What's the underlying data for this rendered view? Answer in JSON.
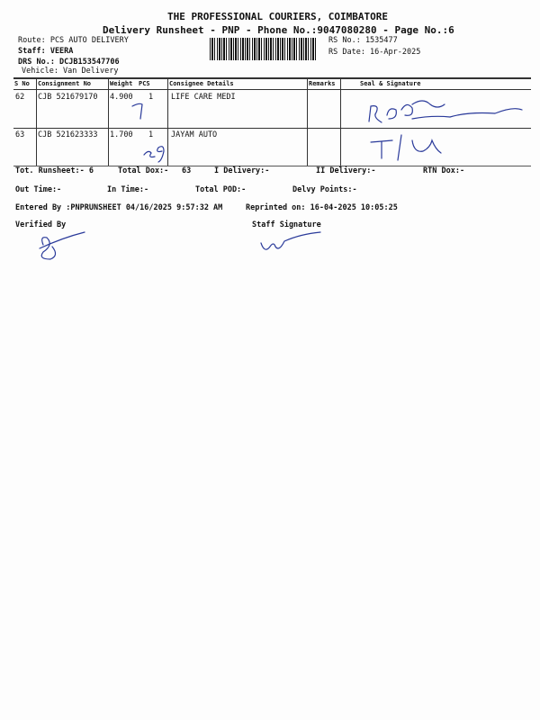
{
  "header": {
    "company": "THE PROFESSIONAL COURIERS, COIMBATORE",
    "subtitle": "Delivery Runsheet - PNP - Phone No.:9047080280 - Page No.:6",
    "route": "Route: PCS AUTO DELIVERY",
    "staff": "Staff: VEERA",
    "drs_no": "DRS No.: DCJB153547706",
    "vehicle": "Vehicle: Van Delivery",
    "rs_no": "RS No.: 1535477",
    "rs_date": "RS Date: 16-Apr-2025"
  },
  "table": {
    "columns": [
      "S No",
      "Consignment No",
      "Weight",
      "PCS",
      "Consignee Details",
      "Remarks",
      "Seal & Signature"
    ],
    "rows": [
      {
        "sno": "62",
        "consignment": "CJB 521679170",
        "weight": "4.900",
        "pcs": "1",
        "consignee": "LIFE CARE MEDI",
        "remarks": ""
      },
      {
        "sno": "63",
        "consignment": "CJB 521623333",
        "weight": "1.700",
        "pcs": "1",
        "consignee": "JAYAM AUTO",
        "remarks": ""
      }
    ]
  },
  "summary": {
    "tot_runsheet": "Tot. Runsheet:- 6",
    "total_dox": "Total Dox:-",
    "total_dox_value": "63",
    "i_delivery": "I Delivery:-",
    "ii_delivery": "II Delivery:-",
    "rtn_dox": "RTN Dox:-",
    "out_time": "Out Time:-",
    "in_time": "In Time:-",
    "total_pod": "Total POD:-",
    "delvy_points": "Delvy Points:-",
    "entered_by": "Entered By :PNPRUNSHEET 04/16/2025 9:57:32 AM",
    "reprinted": "Reprinted on: 16-04-2025 10:05:25",
    "verified_by": "Verified By",
    "staff_signature": "Staff Signature"
  },
  "colors": {
    "ink": "#2a3a9a",
    "text": "#111111"
  }
}
